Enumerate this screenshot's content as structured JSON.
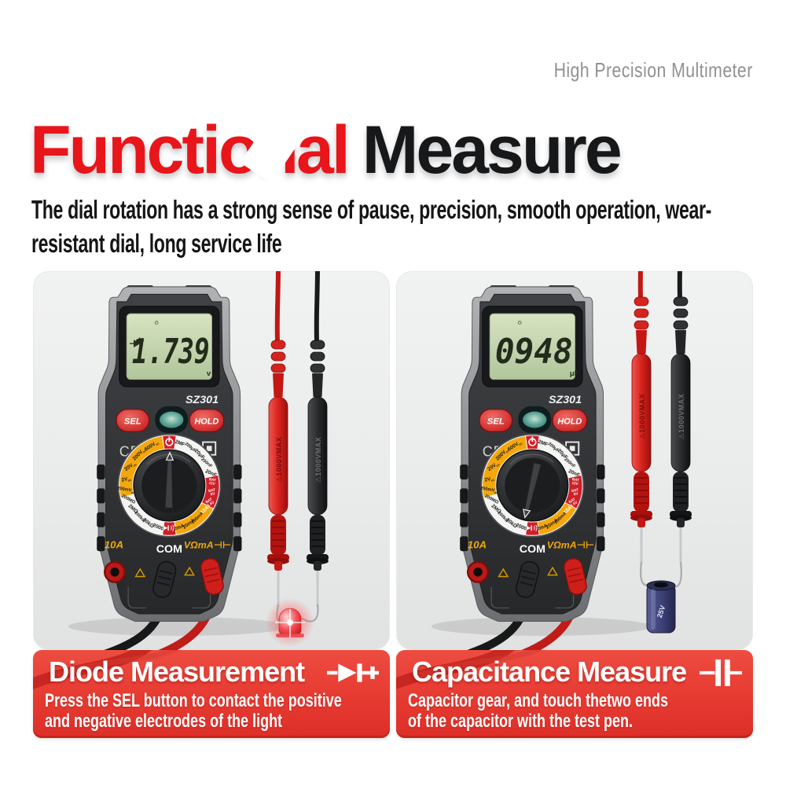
{
  "tagline": "High Precision Multimeter",
  "title": {
    "red_word": "Functional",
    "black_word": "Measure"
  },
  "subtitle": "The dial rotation has a strong sense of pause, precision, smooth operation, wear-resistant dial, long service life",
  "colors": {
    "title_red": "#e8151a",
    "banner_red": "#e63a31",
    "dial_yellow": "#f3a70b",
    "dial_red": "#d01f27",
    "lcd_green": "#c9d9b2",
    "probe_red": "#d8231e",
    "body_gray": "#8b8d90"
  },
  "meter": {
    "model": "SZ301",
    "ce_mark": "CE",
    "buttons": {
      "sel": "SEL",
      "hold": "HOLD"
    },
    "jacks": {
      "amp": "10A",
      "com": "COM",
      "volt": "VΩmA⊣⊢"
    },
    "probe_label": "⚠1000VMAX",
    "dial": {
      "segments": [
        {
          "from": -8,
          "to": 8,
          "color": "red"
        },
        {
          "from": 8,
          "to": 78,
          "color": "white"
        },
        {
          "from": 78,
          "to": 118,
          "color": "red"
        },
        {
          "from": 118,
          "to": 172,
          "color": "yellow"
        },
        {
          "from": 172,
          "to": 188,
          "color": "red"
        },
        {
          "from": 188,
          "to": 256,
          "color": "white"
        },
        {
          "from": 256,
          "to": 352,
          "color": "yellow"
        }
      ],
      "labels": [
        {
          "t": "2MF",
          "a": 14
        },
        {
          "t": "200μF",
          "a": 29
        },
        {
          "t": "20μF",
          "a": 44
        },
        {
          "t": "200nF",
          "a": 59
        },
        {
          "t": "20nF",
          "a": 74
        },
        {
          "t": "BAT|12V",
          "a": 84
        },
        {
          "t": "BAT|9V",
          "a": 98
        },
        {
          "t": "BAT|1.5V",
          "a": 112
        },
        {
          "t": "10A",
          "a": 125,
          "c": "#ffffff"
        },
        {
          "t": "200mA",
          "a": 139
        },
        {
          "t": "20mA",
          "a": 153
        },
        {
          "t": "2mA",
          "a": 167
        },
        {
          "t": "2000",
          "a": 195
        },
        {
          "t": "20kΩ",
          "a": 209
        },
        {
          "t": "200kΩ",
          "a": 223
        },
        {
          "t": "2MΩ",
          "a": 237
        },
        {
          "t": "200MΩ",
          "a": 251
        },
        {
          "t": "200mV",
          "a": 264,
          "s": "DC"
        },
        {
          "t": "2V",
          "a": 278,
          "s": "DC"
        },
        {
          "t": "20V",
          "a": 296,
          "s": "DC"
        },
        {
          "t": "200V",
          "a": 316,
          "s": "DC"
        },
        {
          "t": "600V",
          "a": 336,
          "s": "DC"
        }
      ]
    }
  },
  "capacitor": {
    "label": "25V"
  },
  "panels": [
    {
      "display": "1.739",
      "unit": "v",
      "lcd_indicator": "diode",
      "pointer_angle": 181,
      "attachment": "led",
      "banner": {
        "title": "Diode Measurement",
        "icon": "diode",
        "line1": "Press the SEL button to contact the positive",
        "line2": "and negative electrodes of the light"
      }
    },
    {
      "display": "0948",
      "unit": "μF",
      "lcd_indicator": "",
      "pointer_angle": 13,
      "attachment": "capacitor",
      "banner": {
        "title": "Capacitance Measure",
        "icon": "capacitor",
        "line1": "Capacitor gear, and touch thetwo ends",
        "line2": "of the capacitor with the test pen."
      }
    }
  ]
}
